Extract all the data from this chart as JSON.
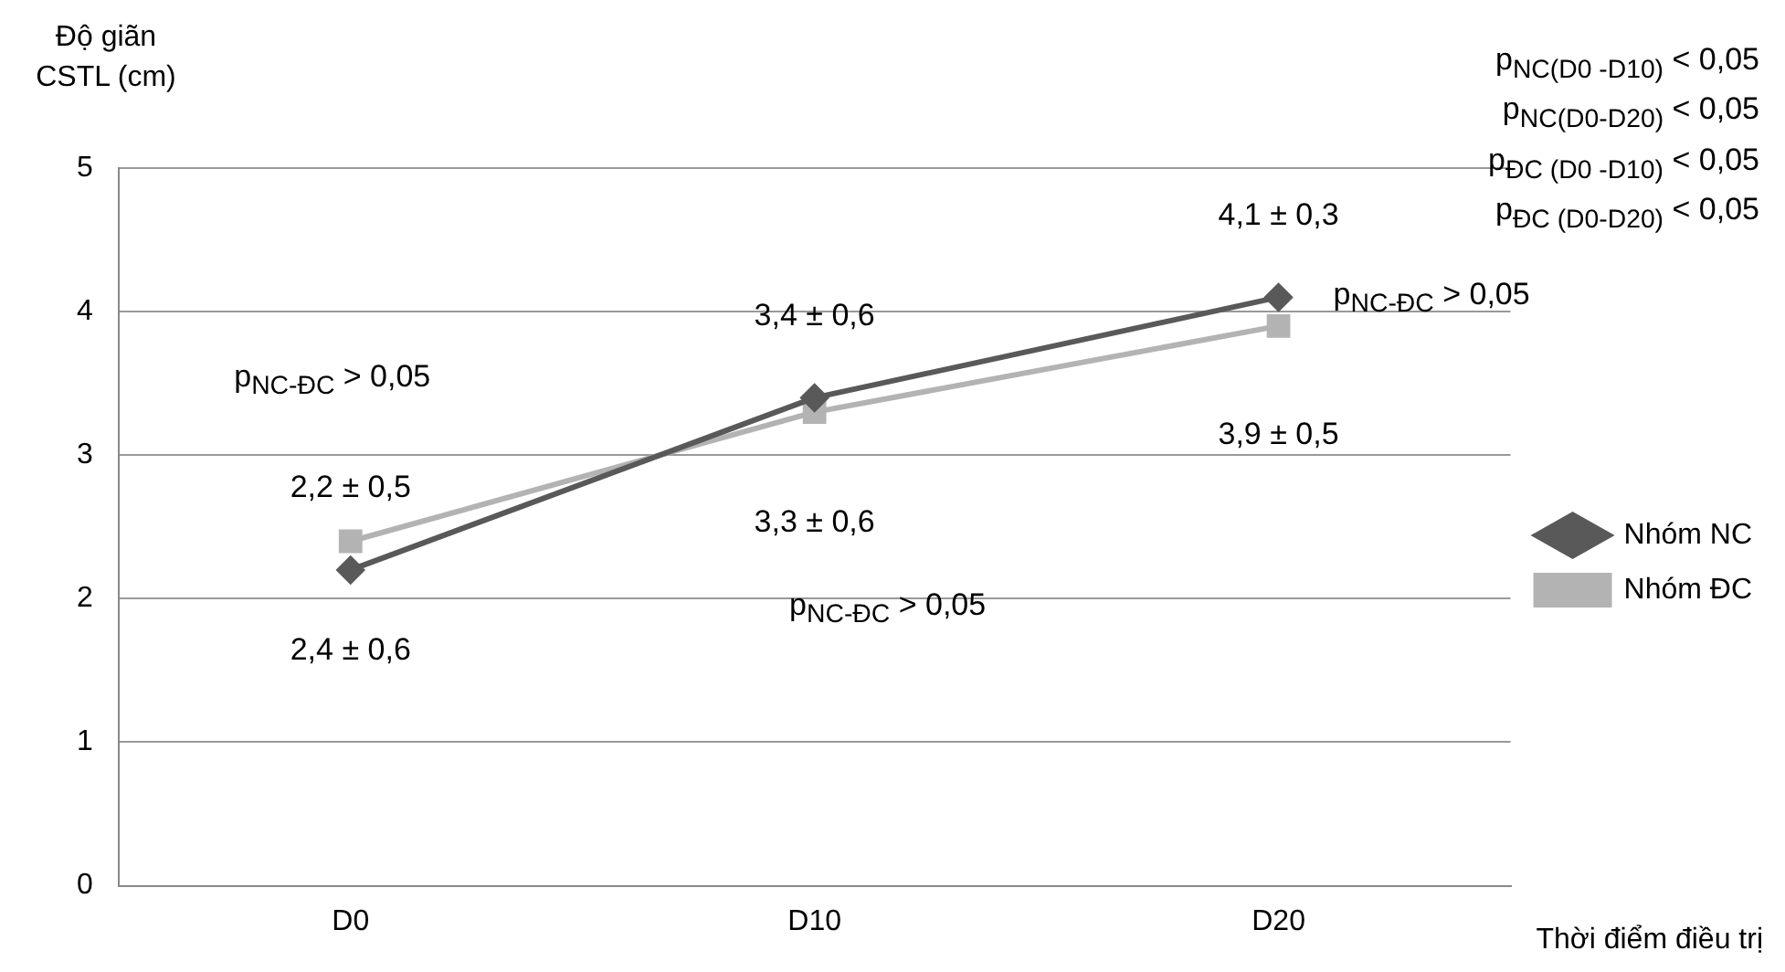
{
  "chart_data": {
    "type": "line",
    "xlabel": "Thời điểm điều trị",
    "ylabel": "Độ giãn CSTL (cm)",
    "categories": [
      "D0",
      "D10",
      "D20"
    ],
    "series": [
      {
        "name": "Nhóm NC",
        "color": "#595959",
        "marker": "diamond",
        "values": [
          2.2,
          3.4,
          4.1
        ],
        "value_labels": [
          "2,2 ± 0,5",
          "3,4 ± 0,6",
          "4,1 ± 0,3"
        ]
      },
      {
        "name": "Nhóm ĐC",
        "color": "#b3b3b3",
        "marker": "square",
        "values": [
          2.4,
          3.3,
          3.9
        ],
        "value_labels": [
          "2,4 ± 0,6",
          "3,3 ± 0,6",
          "3,9 ± 0,5"
        ]
      }
    ],
    "ylim": [
      0,
      5
    ],
    "yticks": [
      0,
      1,
      2,
      3,
      4,
      5
    ],
    "grid": "y",
    "legend": "right",
    "annotations": [
      "p$_{NC-ĐC}$ > 0,05",
      "p$_{NC-ĐC}$ > 0,05",
      "p$_{NC-ĐC}$ > 0,05",
      "p$_{NC(D0 -D10)}$ < 0,05",
      "p$_{NC(D0-D20)}$ < 0,05",
      "p$_{ĐC (D0 -D10)}$ < 0,05",
      "p$_{ĐC (D0-D20)}$ < 0,05"
    ]
  }
}
